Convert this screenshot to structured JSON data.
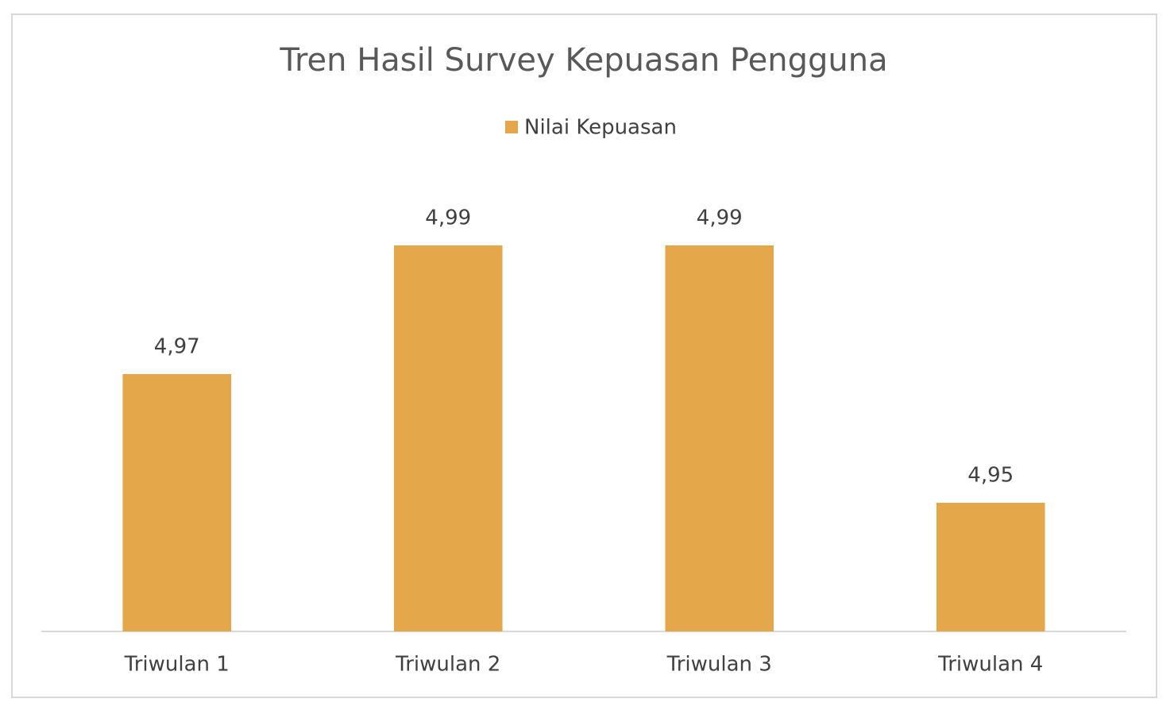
{
  "chart_data": {
    "type": "bar",
    "title": "Tren Hasil Survey Kepuasan Pengguna",
    "categories": [
      "Triwulan 1",
      "Triwulan 2",
      "Triwulan 3",
      "Triwulan 4"
    ],
    "series": [
      {
        "name": "Nilai Kepuasan",
        "color": "#e4a84b",
        "values": [
          4.97,
          4.99,
          4.99,
          4.95
        ],
        "value_labels": [
          "4,97",
          "4,99",
          "4,99",
          "4,95"
        ]
      }
    ],
    "ylim": [
      4.93,
      5.0
    ],
    "legend": "top"
  }
}
